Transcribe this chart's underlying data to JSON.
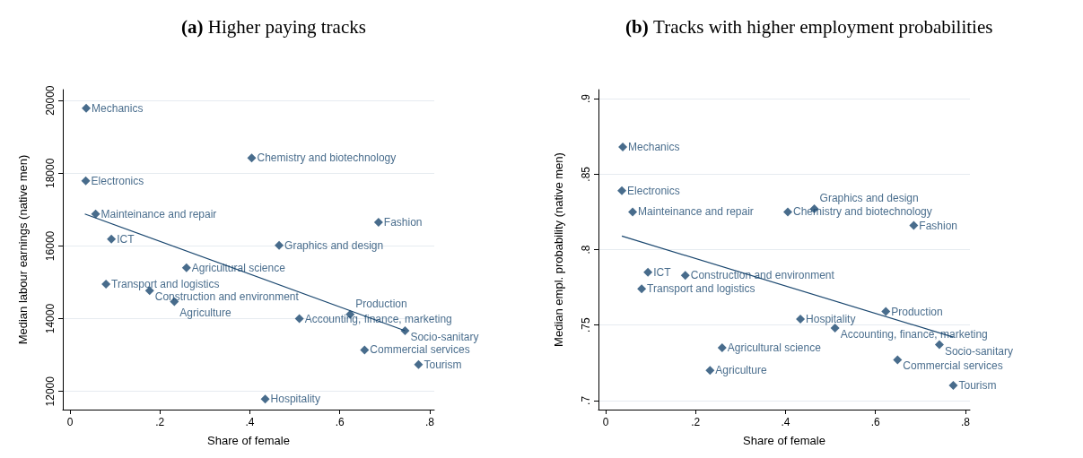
{
  "chart_data": [
    {
      "type": "scatter",
      "title": "(a) Higher paying tracks",
      "xlabel": "Share of female",
      "ylabel": "Median labour earnings (native men)",
      "xlim": [
        -0.016,
        0.81
      ],
      "ylim": [
        11500,
        20300
      ],
      "xticks": [
        0,
        {
          "value": 0.2,
          "label": ".2"
        },
        {
          "value": 0.4,
          "label": ".4"
        },
        {
          "value": 0.6,
          "label": ".6"
        },
        {
          "value": 0.8,
          "label": ".8"
        }
      ],
      "yticks": [
        12000,
        14000,
        16000,
        18000,
        20000
      ],
      "grid": "y",
      "series": [
        {
          "marker": "diamond",
          "color": "#1a476f",
          "x": [
            0.036,
            0.404,
            0.035,
            0.057,
            0.686,
            0.092,
            0.465,
            0.259,
            0.08,
            0.177,
            0.232,
            0.51,
            0.623,
            0.745,
            0.655,
            0.775,
            0.434
          ],
          "values": [
            19790,
            18420,
            17790,
            16880,
            16650,
            16190,
            16020,
            15400,
            14950,
            14770,
            14470,
            14000,
            14120,
            13670,
            13140,
            12740,
            11790
          ]
        },
        {
          "type": "line",
          "color": "#1a476f",
          "line_style": "solid",
          "x": [
            0.033,
            0.745
          ],
          "values": [
            16880,
            13670
          ]
        }
      ],
      "annotations": [
        {
          "text": "Mechanics",
          "x": 0.036,
          "y": 19790
        },
        {
          "text": "Chemistry and biotechnology",
          "x": 0.404,
          "y": 18420
        },
        {
          "text": "Electronics",
          "x": 0.035,
          "y": 17790
        },
        {
          "text": "Mainteinance and repair",
          "x": 0.057,
          "y": 16880
        },
        {
          "text": "Fashion",
          "x": 0.686,
          "y": 16650
        },
        {
          "text": "ICT",
          "x": 0.092,
          "y": 16190
        },
        {
          "text": "Graphics and design",
          "x": 0.465,
          "y": 16020
        },
        {
          "text": "Agricultural science",
          "x": 0.259,
          "y": 15400
        },
        {
          "text": "Transport and logistics",
          "x": 0.08,
          "y": 14950
        },
        {
          "text": "Construction and environment",
          "x": 0.177,
          "y": 14770
        },
        {
          "text": "Agriculture",
          "x": 0.232,
          "y": 14470
        },
        {
          "text": "Accounting, finance, marketing",
          "x": 0.51,
          "y": 14000
        },
        {
          "text": "Production",
          "x": 0.623,
          "y": 14120
        },
        {
          "text": "Socio-sanitary",
          "x": 0.745,
          "y": 13670
        },
        {
          "text": "Commercial services",
          "x": 0.655,
          "y": 13140
        },
        {
          "text": "Tourism",
          "x": 0.775,
          "y": 12740
        },
        {
          "text": "Hospitality",
          "x": 0.434,
          "y": 11790
        }
      ]
    },
    {
      "type": "scatter",
      "title": "(b) Tracks with higher employment probabilities",
      "xlabel": "Share of female",
      "ylabel": "Median empl. probability (native men)",
      "xlim": [
        -0.016,
        0.81
      ],
      "ylim": [
        0.694,
        0.906
      ],
      "xticks": [
        0,
        {
          "value": 0.2,
          "label": ".2"
        },
        {
          "value": 0.4,
          "label": ".4"
        },
        {
          "value": 0.6,
          "label": ".6"
        },
        {
          "value": 0.8,
          "label": ".8"
        }
      ],
      "yticks": [
        {
          "value": 0.7,
          "label": ".7"
        },
        {
          "value": 0.75,
          "label": ".75"
        },
        {
          "value": 0.8,
          "label": ".8"
        },
        {
          "value": 0.85,
          "label": ".85"
        },
        {
          "value": 0.9,
          "label": ".9"
        }
      ],
      "grid": "y",
      "series": [
        {
          "marker": "diamond",
          "color": "#1a476f",
          "x": [
            0.038,
            0.036,
            0.06,
            0.405,
            0.464,
            0.685,
            0.094,
            0.177,
            0.08,
            0.623,
            0.433,
            0.51,
            0.742,
            0.259,
            0.649,
            0.232,
            0.773
          ],
          "values": [
            0.868,
            0.839,
            0.825,
            0.825,
            0.827,
            0.816,
            0.785,
            0.783,
            0.774,
            0.759,
            0.754,
            0.748,
            0.737,
            0.735,
            0.727,
            0.72,
            0.71
          ]
        },
        {
          "type": "line",
          "color": "#1a476f",
          "line_style": "solid",
          "x": [
            0.036,
            0.773
          ],
          "values": [
            0.809,
            0.742
          ]
        }
      ],
      "annotations": [
        {
          "text": "Mechanics",
          "x": 0.038,
          "y": 0.868
        },
        {
          "text": "Electronics",
          "x": 0.036,
          "y": 0.839
        },
        {
          "text": "Mainteinance and repair",
          "x": 0.06,
          "y": 0.825
        },
        {
          "text": "Chemistry and biotechnology",
          "x": 0.405,
          "y": 0.825
        },
        {
          "text": "Graphics and design",
          "x": 0.464,
          "y": 0.827
        },
        {
          "text": "Fashion",
          "x": 0.685,
          "y": 0.816
        },
        {
          "text": "ICT",
          "x": 0.094,
          "y": 0.785
        },
        {
          "text": "Construction and environment",
          "x": 0.177,
          "y": 0.783
        },
        {
          "text": "Transport and logistics",
          "x": 0.08,
          "y": 0.774
        },
        {
          "text": "Production",
          "x": 0.623,
          "y": 0.759
        },
        {
          "text": "Hospitality",
          "x": 0.433,
          "y": 0.754
        },
        {
          "text": "Accounting, finance, marketing",
          "x": 0.51,
          "y": 0.748
        },
        {
          "text": "Socio-sanitary",
          "x": 0.742,
          "y": 0.737
        },
        {
          "text": "Agricultural science",
          "x": 0.259,
          "y": 0.735
        },
        {
          "text": "Commercial services",
          "x": 0.649,
          "y": 0.727
        },
        {
          "text": "Agriculture",
          "x": 0.232,
          "y": 0.72
        },
        {
          "text": "Tourism",
          "x": 0.773,
          "y": 0.71
        }
      ]
    }
  ]
}
